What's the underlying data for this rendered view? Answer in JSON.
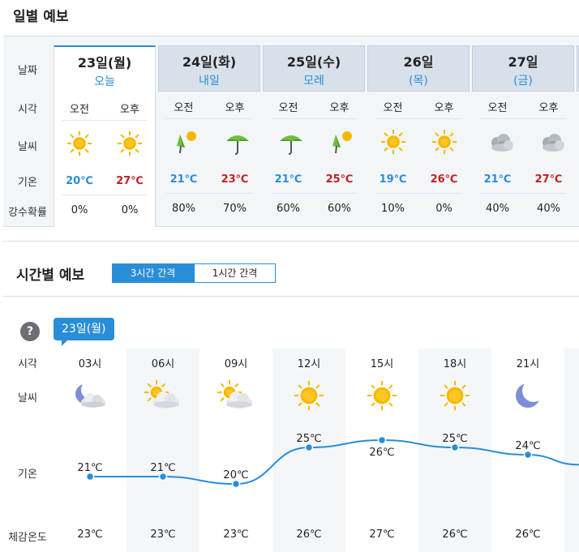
{
  "daily": {
    "title": "일별 예보",
    "row_labels": {
      "date": "날짜",
      "time": "시각",
      "weather": "날씨",
      "temp": "기온",
      "precip": "강수확률"
    },
    "am_label": "오전",
    "pm_label": "오후",
    "days": [
      {
        "date": "23일(월)",
        "sub": "오늘",
        "am_icon": "sun-icon",
        "pm_icon": "sun-icon",
        "low": "20℃",
        "high": "27℃",
        "am_precip": "0%",
        "pm_precip": "0%"
      },
      {
        "date": "24일(화)",
        "sub": "내일",
        "am_icon": "umbrella-sun-icon",
        "pm_icon": "umbrella-icon",
        "low": "21℃",
        "high": "23℃",
        "am_precip": "80%",
        "pm_precip": "70%"
      },
      {
        "date": "25일(수)",
        "sub": "모레",
        "am_icon": "umbrella-icon",
        "pm_icon": "umbrella-sun-icon",
        "low": "21℃",
        "high": "25℃",
        "am_precip": "60%",
        "pm_precip": "60%"
      },
      {
        "date": "26일",
        "sub": "(목)",
        "am_icon": "sun-icon",
        "pm_icon": "sun-icon",
        "low": "19℃",
        "high": "26℃",
        "am_precip": "10%",
        "pm_precip": "0%"
      },
      {
        "date": "27일",
        "sub": "(금)",
        "am_icon": "cloud-icon",
        "pm_icon": "cloud-icon",
        "low": "21℃",
        "high": "27℃",
        "am_precip": "40%",
        "pm_precip": "40%"
      }
    ]
  },
  "hourly": {
    "title": "시간별 예보",
    "tabs": [
      {
        "label": "3시간 간격",
        "active": true
      },
      {
        "label": "1시간 간격",
        "active": false
      }
    ],
    "help_label": "?",
    "date_badge": "23일(월)",
    "row_labels": {
      "time": "시각",
      "weather": "날씨",
      "temp": "기온",
      "feels": "체감온도"
    },
    "hours": [
      {
        "time": "03시",
        "icon": "moon-cloud-icon",
        "temp": "21℃",
        "temp_value": 21,
        "feels": "23℃"
      },
      {
        "time": "06시",
        "icon": "sun-cloud-icon",
        "temp": "21℃",
        "temp_value": 21,
        "feels": "23℃"
      },
      {
        "time": "09시",
        "icon": "sun-cloud-icon",
        "temp": "20℃",
        "temp_value": 20,
        "feels": "23℃"
      },
      {
        "time": "12시",
        "icon": "sun-icon",
        "temp": "25℃",
        "temp_value": 25,
        "feels": "26℃"
      },
      {
        "time": "15시",
        "icon": "sun-icon",
        "temp": "26℃",
        "temp_value": 26,
        "feels": "27℃"
      },
      {
        "time": "18시",
        "icon": "sun-icon",
        "temp": "25℃",
        "temp_value": 25,
        "feels": "26℃"
      },
      {
        "time": "21시",
        "icon": "moon-icon",
        "temp": "24℃",
        "temp_value": 24,
        "feels": "26℃"
      }
    ]
  },
  "colors": {
    "accent": "#2a8dd8",
    "low_temp": "#2a8dd8",
    "high_temp": "#c0231e",
    "sun": "#f5b800",
    "header_bg": "#d8e1ea"
  }
}
